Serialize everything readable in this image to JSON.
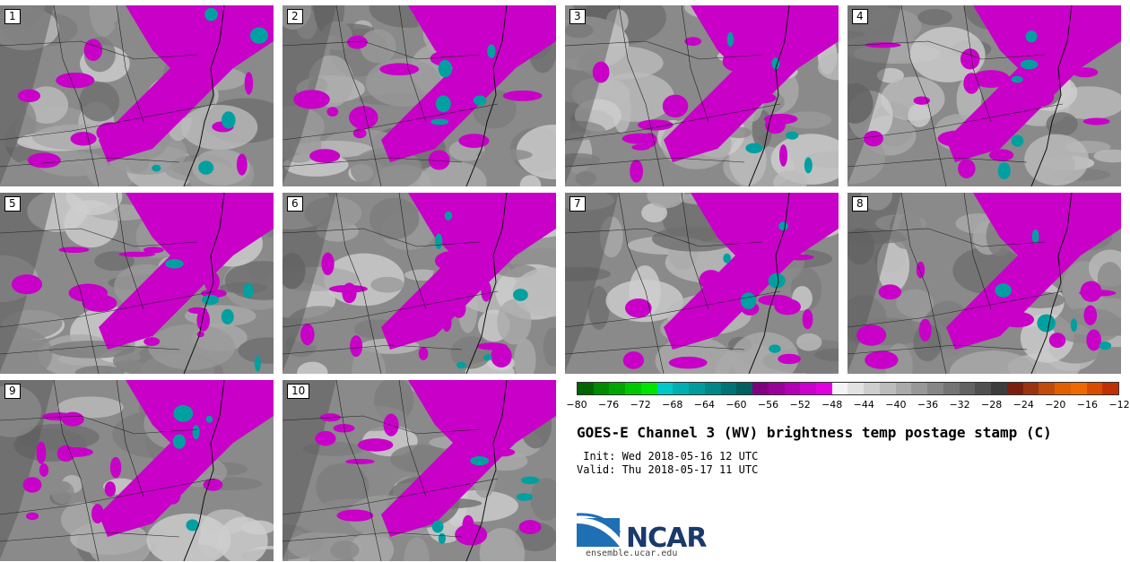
{
  "panels": [
    {
      "label": "1"
    },
    {
      "label": "2"
    },
    {
      "label": "3"
    },
    {
      "label": "4"
    },
    {
      "label": "5"
    },
    {
      "label": "6"
    },
    {
      "label": "7"
    },
    {
      "label": "8"
    },
    {
      "label": "9"
    },
    {
      "label": "10"
    }
  ],
  "colorbar": {
    "colors": [
      "#006400",
      "#008a00",
      "#00a600",
      "#00c800",
      "#00e400",
      "#00c8c8",
      "#00b0b0",
      "#009c9c",
      "#008888",
      "#007474",
      "#006060",
      "#800080",
      "#9a009a",
      "#b400b4",
      "#cc00cc",
      "#e000e0",
      "#f4f4f4",
      "#e2e2e2",
      "#cecece",
      "#bcbcbc",
      "#aaaaaa",
      "#989898",
      "#868686",
      "#747474",
      "#626262",
      "#505050",
      "#3c3c3c",
      "#7a1e10",
      "#9a3410",
      "#c04c0c",
      "#e06000",
      "#f06800",
      "#d84c00",
      "#c03000"
    ],
    "ticks": [
      "−80",
      "−76",
      "−72",
      "−68",
      "−64",
      "−60",
      "−56",
      "−52",
      "−48",
      "−44",
      "−40",
      "−36",
      "−32",
      "−28",
      "−24",
      "−20",
      "−16",
      "−12"
    ],
    "accent_magenta": "#c800c8",
    "accent_teal": "#00a0a0"
  },
  "title": "GOES-E Channel 3 (WV) brightness temp postage stamp (C)",
  "init": " Init: Wed 2018-05-16 12 UTC",
  "valid": "Valid: Thu 2018-05-17 11 UTC",
  "logo": {
    "text": "NCAR",
    "url": "ensemble.ucar.edu"
  }
}
